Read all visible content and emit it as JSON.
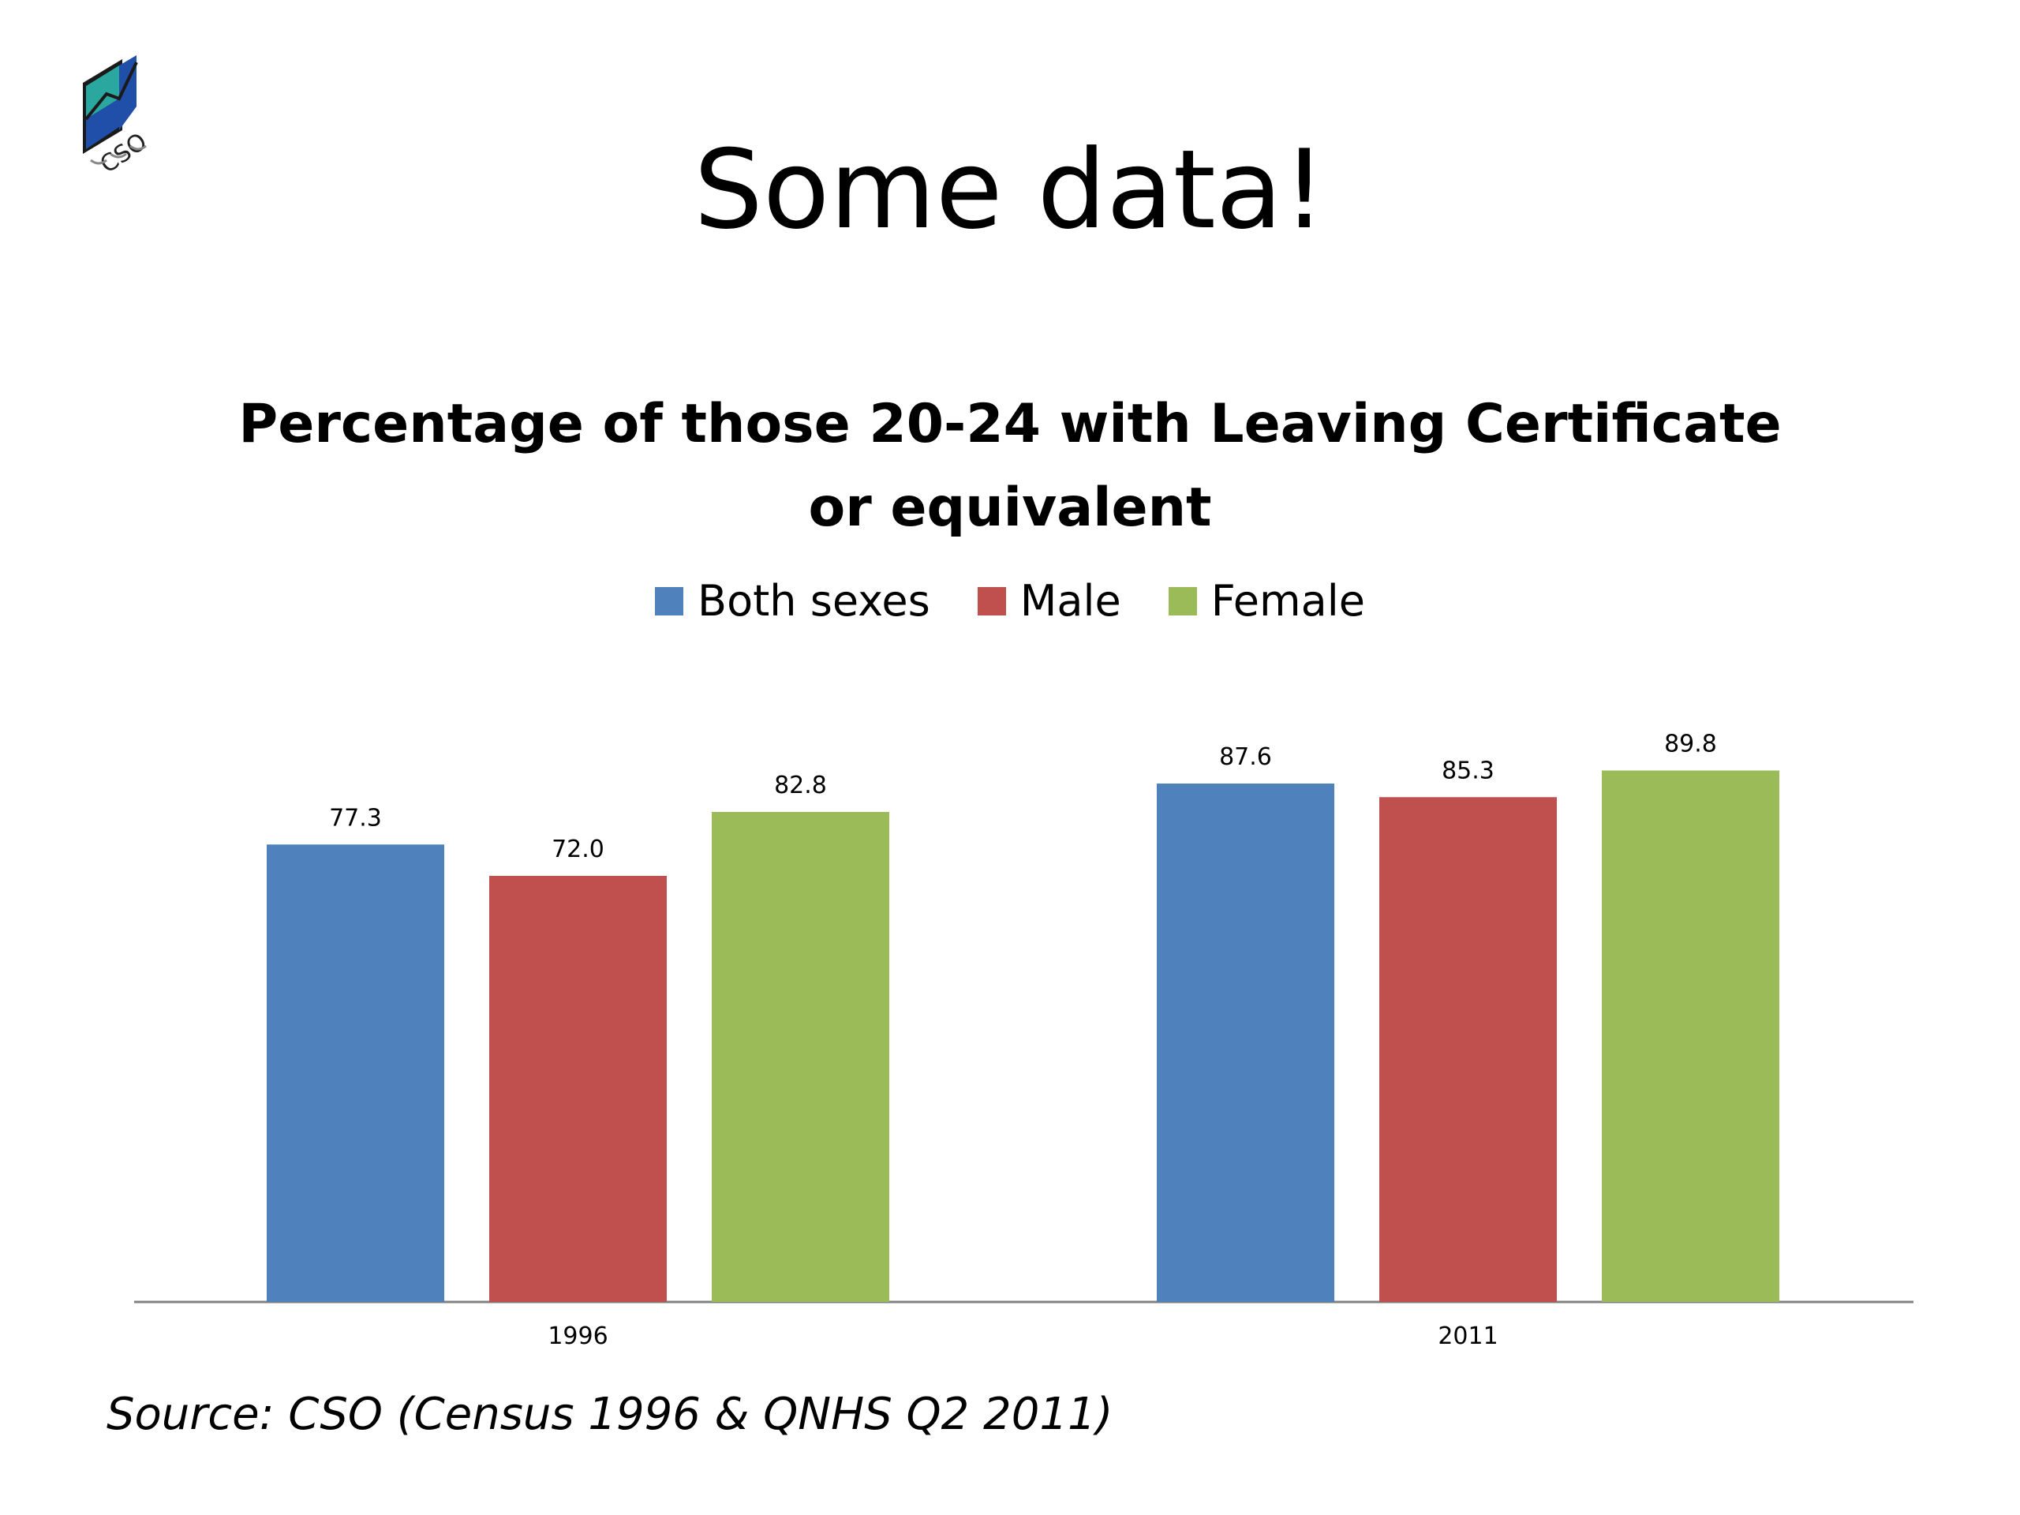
{
  "slide": {
    "title": "Some data!",
    "source": "Source: CSO (Census 1996 & QNHS Q2 2011)",
    "logo_text": "CSO"
  },
  "colors": {
    "both": "#4F81BD",
    "male": "#C0504D",
    "female": "#9BBB59",
    "axis": "#808080"
  },
  "chart_data": {
    "type": "bar",
    "title": "Percentage of those 20-24 with Leaving Certificate or equivalent",
    "title_lines": [
      "Percentage of those 20-24 with Leaving Certificate",
      "or equivalent"
    ],
    "categories": [
      "1996",
      "2011"
    ],
    "series": [
      {
        "name": "Both sexes",
        "color": "#4F81BD",
        "values": [
          77.3,
          87.6
        ],
        "labels": [
          "77.3",
          "87.6"
        ]
      },
      {
        "name": "Male",
        "color": "#C0504D",
        "values": [
          72.0,
          85.3
        ],
        "labels": [
          "72.0",
          "85.3"
        ]
      },
      {
        "name": "Female",
        "color": "#9BBB59",
        "values": [
          82.8,
          89.8
        ],
        "labels": [
          "82.8",
          "89.8"
        ]
      }
    ],
    "ylim": [
      0,
      100
    ],
    "legend": "top",
    "grid": false
  }
}
